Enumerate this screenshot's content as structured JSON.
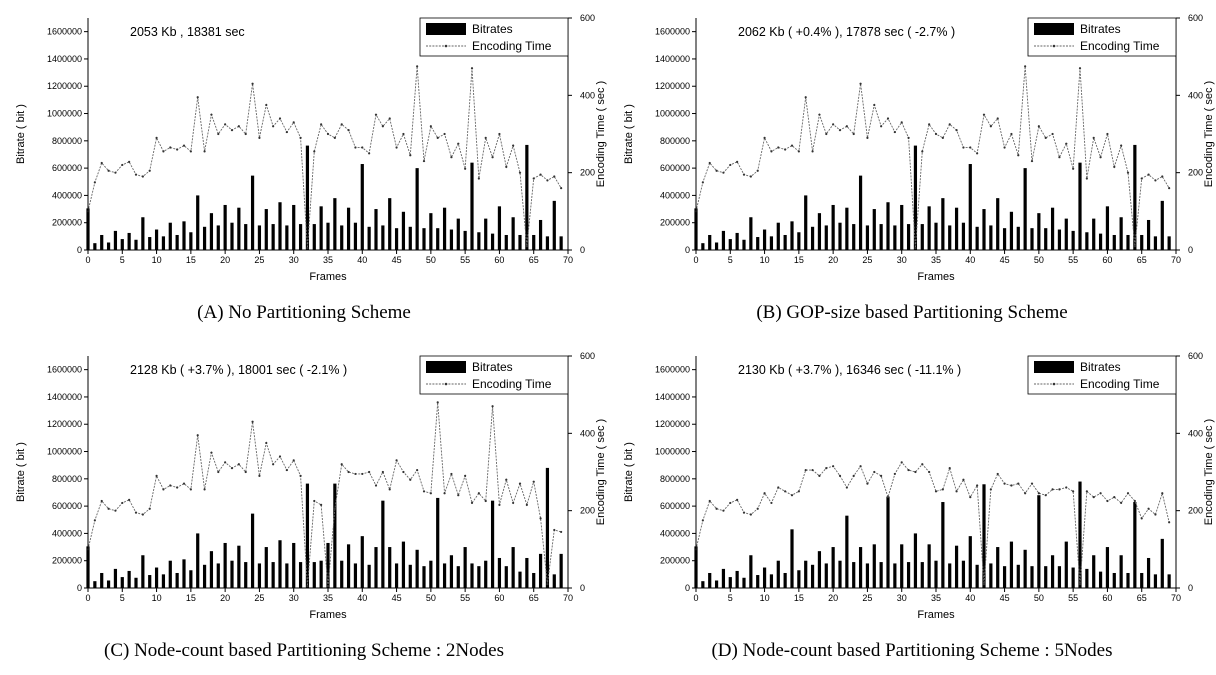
{
  "panels": [
    {
      "id": "A",
      "caption": "(A)  No Partitioning Scheme",
      "chart_data": {
        "type": "bar+line",
        "summary": "2053 Kb , 18381 sec",
        "xlabel": "Frames",
        "ylabel": "Bitrate ( bit )",
        "y2label": "Encoding Time ( sec )",
        "xlim": [
          0,
          70
        ],
        "ylim": [
          0,
          1700000
        ],
        "y2lim": [
          0,
          600
        ],
        "xticks": [
          0,
          5,
          10,
          15,
          20,
          25,
          30,
          35,
          40,
          45,
          50,
          55,
          60,
          65,
          70
        ],
        "yticks": [
          0,
          200000,
          400000,
          600000,
          800000,
          1000000,
          1200000,
          1400000,
          1600000
        ],
        "y2ticks": [
          0,
          200,
          400,
          600
        ],
        "legend": [
          "Bitrates",
          "Encoding Time"
        ],
        "legend_position": "top-right",
        "series": [
          {
            "name": "Bitrates",
            "kind": "bar",
            "values": [
              305000,
              50000,
              110000,
              55000,
              140000,
              80000,
              125000,
              75000,
              240000,
              95000,
              150000,
              100000,
              200000,
              110000,
              210000,
              130000,
              400000,
              170000,
              270000,
              180000,
              330000,
              200000,
              310000,
              190000,
              545000,
              180000,
              300000,
              190000,
              350000,
              180000,
              330000,
              190000,
              765000,
              190000,
              320000,
              200000,
              380000,
              180000,
              310000,
              200000,
              630000,
              170000,
              300000,
              180000,
              380000,
              160000,
              280000,
              170000,
              600000,
              160000,
              270000,
              160000,
              310000,
              150000,
              230000,
              140000,
              640000,
              130000,
              230000,
              120000,
              320000,
              110000,
              240000,
              110000,
              770000,
              110000,
              220000,
              100000,
              360000,
              100000
            ]
          },
          {
            "name": "Encoding Time",
            "kind": "line",
            "values": [
              100,
              175,
              225,
              205,
              200,
              220,
              228,
              195,
              190,
              205,
              290,
              255,
              265,
              260,
              270,
              255,
              395,
              255,
              350,
              300,
              325,
              310,
              320,
              300,
              430,
              290,
              375,
              320,
              340,
              305,
              330,
              290,
              5,
              255,
              325,
              300,
              290,
              325,
              310,
              265,
              265,
              250,
              350,
              320,
              340,
              265,
              300,
              245,
              475,
              230,
              320,
              290,
              300,
              240,
              275,
              210,
              470,
              185,
              290,
              240,
              300,
              215,
              270,
              200,
              10,
              185,
              195,
              180,
              190,
              160
            ]
          }
        ]
      }
    },
    {
      "id": "B",
      "caption": "(B) GOP-size based Partitioning Scheme",
      "chart_data": {
        "type": "bar+line",
        "summary": "2062 Kb ( +0.4% ), 17878 sec ( -2.7% )",
        "xlabel": "Frames",
        "ylabel": "Bitrate ( bit )",
        "y2label": "Encoding Time ( sec )",
        "xlim": [
          0,
          70
        ],
        "ylim": [
          0,
          1700000
        ],
        "y2lim": [
          0,
          600
        ],
        "xticks": [
          0,
          5,
          10,
          15,
          20,
          25,
          30,
          35,
          40,
          45,
          50,
          55,
          60,
          65,
          70
        ],
        "yticks": [
          0,
          200000,
          400000,
          600000,
          800000,
          1000000,
          1200000,
          1400000,
          1600000
        ],
        "y2ticks": [
          0,
          200,
          400,
          600
        ],
        "legend": [
          "Bitrates",
          "Encoding Time"
        ],
        "legend_position": "top-right",
        "series": [
          {
            "name": "Bitrates",
            "kind": "bar",
            "values": [
              305000,
              50000,
              110000,
              55000,
              140000,
              80000,
              125000,
              75000,
              240000,
              95000,
              150000,
              100000,
              200000,
              110000,
              210000,
              130000,
              400000,
              170000,
              270000,
              180000,
              330000,
              200000,
              310000,
              190000,
              545000,
              180000,
              300000,
              190000,
              350000,
              180000,
              330000,
              190000,
              765000,
              190000,
              320000,
              200000,
              380000,
              180000,
              310000,
              200000,
              630000,
              170000,
              300000,
              180000,
              380000,
              160000,
              280000,
              170000,
              600000,
              160000,
              270000,
              160000,
              310000,
              150000,
              230000,
              140000,
              640000,
              130000,
              230000,
              120000,
              320000,
              110000,
              240000,
              110000,
              770000,
              110000,
              220000,
              100000,
              360000,
              100000
            ]
          },
          {
            "name": "Encoding Time",
            "kind": "line",
            "values": [
              100,
              175,
              225,
              205,
              200,
              220,
              228,
              195,
              190,
              205,
              290,
              255,
              265,
              260,
              270,
              255,
              395,
              255,
              350,
              300,
              325,
              310,
              320,
              300,
              430,
              290,
              375,
              320,
              340,
              305,
              330,
              290,
              5,
              255,
              325,
              300,
              290,
              325,
              310,
              265,
              265,
              250,
              350,
              320,
              340,
              265,
              300,
              245,
              475,
              230,
              320,
              290,
              300,
              240,
              275,
              210,
              470,
              185,
              290,
              240,
              300,
              215,
              270,
              200,
              10,
              185,
              195,
              180,
              190,
              160
            ]
          }
        ]
      }
    },
    {
      "id": "C",
      "caption": "(C) Node-count based Partitioning Scheme : 2Nodes",
      "chart_data": {
        "type": "bar+line",
        "summary": "2128 Kb ( +3.7% ), 18001 sec ( -2.1% )",
        "xlabel": "Frames",
        "ylabel": "Bitrate ( bit )",
        "y2label": "Encoding Time ( sec )",
        "xlim": [
          0,
          70
        ],
        "ylim": [
          0,
          1700000
        ],
        "y2lim": [
          0,
          600
        ],
        "xticks": [
          0,
          5,
          10,
          15,
          20,
          25,
          30,
          35,
          40,
          45,
          50,
          55,
          60,
          65,
          70
        ],
        "yticks": [
          0,
          200000,
          400000,
          600000,
          800000,
          1000000,
          1200000,
          1400000,
          1600000
        ],
        "y2ticks": [
          0,
          200,
          400,
          600
        ],
        "legend": [
          "Bitrates",
          "Encoding Time"
        ],
        "legend_position": "top-right",
        "series": [
          {
            "name": "Bitrates",
            "kind": "bar",
            "values": [
              305000,
              50000,
              110000,
              55000,
              140000,
              80000,
              125000,
              75000,
              240000,
              95000,
              150000,
              100000,
              200000,
              110000,
              210000,
              130000,
              400000,
              170000,
              270000,
              180000,
              330000,
              200000,
              310000,
              190000,
              545000,
              180000,
              300000,
              190000,
              350000,
              180000,
              330000,
              190000,
              765000,
              190000,
              200000,
              330000,
              765000,
              200000,
              320000,
              180000,
              380000,
              170000,
              300000,
              640000,
              300000,
              180000,
              340000,
              170000,
              280000,
              160000,
              200000,
              660000,
              180000,
              240000,
              160000,
              300000,
              180000,
              160000,
              200000,
              640000,
              220000,
              160000,
              300000,
              120000,
              220000,
              110000,
              250000,
              880000,
              100000,
              250000
            ]
          },
          {
            "name": "Encoding Time",
            "kind": "line",
            "values": [
              100,
              175,
              225,
              205,
              200,
              220,
              228,
              195,
              190,
              205,
              290,
              255,
              265,
              260,
              270,
              255,
              395,
              255,
              350,
              300,
              325,
              310,
              320,
              300,
              430,
              290,
              375,
              320,
              340,
              305,
              330,
              290,
              5,
              225,
              215,
              5,
              205,
              320,
              300,
              295,
              295,
              300,
              265,
              300,
              255,
              330,
              300,
              280,
              305,
              250,
              245,
              480,
              245,
              295,
              240,
              290,
              220,
              245,
              225,
              470,
              215,
              280,
              220,
              270,
              215,
              275,
              180,
              10,
              150,
              145
            ]
          }
        ]
      }
    },
    {
      "id": "D",
      "caption": "(D) Node-count based Partitioning Scheme : 5Nodes",
      "chart_data": {
        "type": "bar+line",
        "summary": "2130 Kb ( +3.7% ), 16346 sec ( -11.1% )",
        "xlabel": "Frames",
        "ylabel": "Bitrate ( bit )",
        "y2label": "Encoding Time ( sec )",
        "xlim": [
          0,
          70
        ],
        "ylim": [
          0,
          1700000
        ],
        "y2lim": [
          0,
          600
        ],
        "xticks": [
          0,
          5,
          10,
          15,
          20,
          25,
          30,
          35,
          40,
          45,
          50,
          55,
          60,
          65,
          70
        ],
        "yticks": [
          0,
          200000,
          400000,
          600000,
          800000,
          1000000,
          1200000,
          1400000,
          1600000
        ],
        "y2ticks": [
          0,
          200,
          400,
          600
        ],
        "legend": [
          "Bitrates",
          "Encoding Time"
        ],
        "legend_position": "top-right",
        "series": [
          {
            "name": "Bitrates",
            "kind": "bar",
            "values": [
              305000,
              50000,
              110000,
              55000,
              140000,
              80000,
              125000,
              75000,
              240000,
              95000,
              150000,
              100000,
              200000,
              110000,
              430000,
              130000,
              200000,
              170000,
              270000,
              180000,
              300000,
              200000,
              530000,
              190000,
              300000,
              180000,
              320000,
              190000,
              670000,
              180000,
              320000,
              190000,
              400000,
              190000,
              320000,
              200000,
              630000,
              180000,
              310000,
              200000,
              380000,
              170000,
              760000,
              180000,
              300000,
              160000,
              340000,
              170000,
              280000,
              160000,
              680000,
              160000,
              240000,
              160000,
              340000,
              150000,
              780000,
              140000,
              240000,
              120000,
              300000,
              110000,
              240000,
              110000,
              630000,
              110000,
              220000,
              100000,
              360000,
              100000
            ]
          },
          {
            "name": "Encoding Time",
            "kind": "line",
            "values": [
              100,
              175,
              225,
              205,
              200,
              220,
              228,
              195,
              190,
              205,
              245,
              220,
              260,
              250,
              240,
              250,
              305,
              305,
              290,
              310,
              315,
              290,
              260,
              290,
              315,
              270,
              300,
              290,
              235,
              295,
              325,
              305,
              300,
              320,
              300,
              250,
              255,
              310,
              250,
              280,
              235,
              265,
              10,
              255,
              295,
              270,
              265,
              270,
              245,
              270,
              245,
              240,
              255,
              255,
              260,
              250,
              10,
              250,
              235,
              245,
              225,
              235,
              220,
              245,
              225,
              180,
              205,
              190,
              245,
              170
            ]
          }
        ]
      }
    }
  ]
}
